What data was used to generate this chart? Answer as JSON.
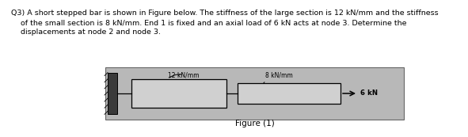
{
  "text_block_line1": "Q3) A short stepped bar is shown in Figure below. The stiffness of the large section is 12 kN/mm and the stiffness",
  "text_block_line2": "    of the small section is 8 kN/mm. End 1 is fixed and an axial load of 6 kN acts at node 3. Determine the",
  "text_block_line3": "    displacements at node 2 and node 3.",
  "figure_label": "Figure (1)",
  "label_large": "12 kN/mm",
  "label_small": "8 kN/mm",
  "force_label": "6 kN",
  "bg_color": "#b8b8b8",
  "bar_color": "#d0d0d0",
  "wall_color": "#3a3a3a",
  "text_color": "#000000",
  "fig_bg": "#ffffff",
  "box_edge_color": "#666666",
  "bar_edge_color": "#000000"
}
